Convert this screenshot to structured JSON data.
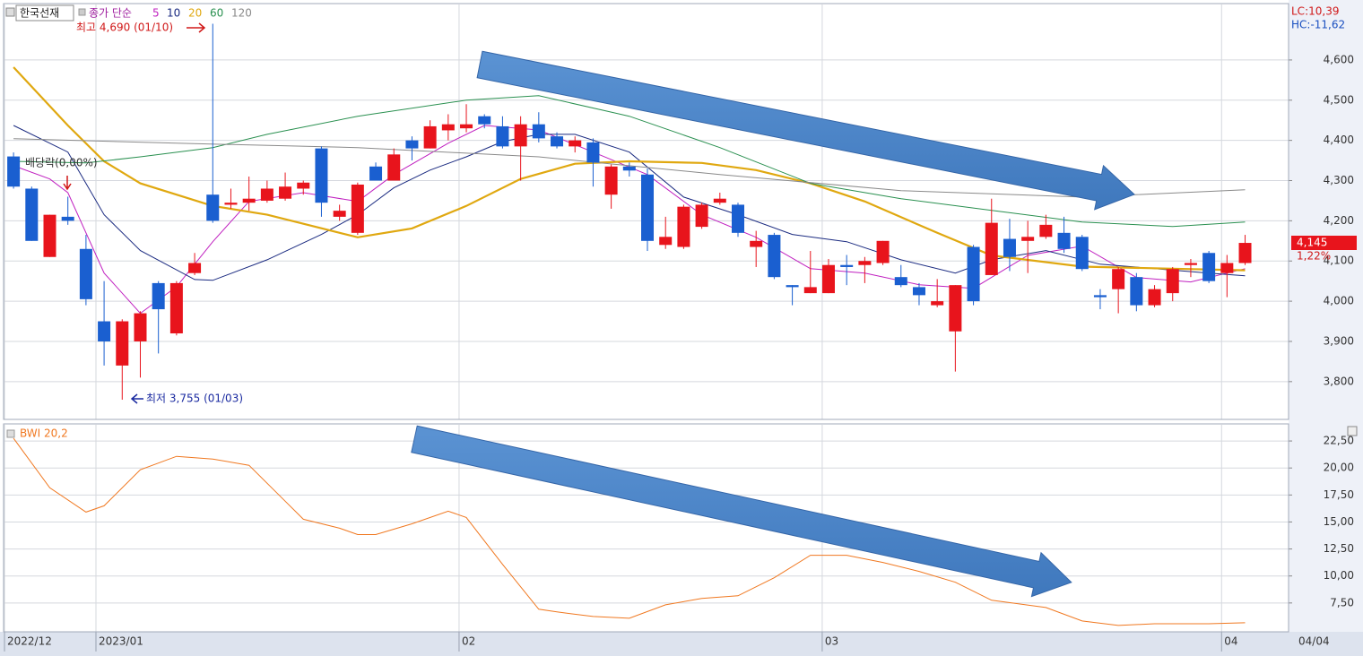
{
  "chart_data": [
    {
      "type": "candlestick",
      "title": "한국선재",
      "legend_title": "종가 단순",
      "up_color": "#e8141c",
      "down_color": "#1a5fd0",
      "open": [
        4360,
        4280,
        4110,
        4210,
        4130,
        3950,
        3840,
        3900,
        4045,
        3920,
        4070,
        4265,
        4240,
        4245,
        4250,
        4255,
        4280,
        4380,
        4210,
        4170,
        4335,
        4300,
        4400,
        4380,
        4425,
        4430,
        4460,
        4435,
        4385,
        4440,
        4410,
        4385,
        4395,
        4265,
        4335,
        4315,
        4140,
        4135,
        4185,
        4245,
        4240,
        4135,
        4165,
        4040,
        4020,
        4020,
        4090,
        4090,
        4095,
        4060,
        4035,
        3990,
        3925,
        4135,
        4065,
        4155,
        4150,
        4160,
        4170,
        4160,
        4015,
        4030,
        4060,
        3990,
        4020,
        4090,
        4120,
        4070,
        4095
      ],
      "high": [
        4370,
        4285,
        4215,
        4260,
        4165,
        4050,
        3955,
        3975,
        4050,
        4050,
        4120,
        4690,
        4280,
        4310,
        4300,
        4320,
        4300,
        4385,
        4240,
        4295,
        4345,
        4380,
        4410,
        4450,
        4465,
        4490,
        4465,
        4460,
        4460,
        4470,
        4420,
        4410,
        4405,
        4340,
        4345,
        4330,
        4210,
        4240,
        4245,
        4270,
        4245,
        4175,
        4170,
        4040,
        4125,
        4105,
        4115,
        4110,
        4150,
        4090,
        4045,
        4055,
        4040,
        4140,
        4255,
        4205,
        4200,
        4215,
        4210,
        4165,
        4030,
        4085,
        4070,
        4040,
        4085,
        4105,
        4125,
        4115,
        4165
      ],
      "low": [
        4280,
        4150,
        4110,
        4190,
        3990,
        3840,
        3755,
        3810,
        3870,
        3915,
        4065,
        4195,
        4230,
        4225,
        4245,
        4250,
        4265,
        4210,
        4200,
        4165,
        4300,
        4300,
        4350,
        4380,
        4400,
        4420,
        4430,
        4380,
        4300,
        4395,
        4380,
        4370,
        4285,
        4230,
        4310,
        4125,
        4130,
        4130,
        4180,
        4240,
        4160,
        4085,
        4055,
        3990,
        4020,
        4020,
        4040,
        4045,
        4090,
        4035,
        3990,
        3985,
        3825,
        3990,
        4065,
        4075,
        4070,
        4155,
        4120,
        4075,
        3980,
        3970,
        3975,
        3985,
        4000,
        4060,
        4045,
        4010,
        4090
      ],
      "close": [
        4285,
        4150,
        4215,
        4200,
        4005,
        3900,
        3950,
        3970,
        3980,
        4045,
        4095,
        4200,
        4245,
        4255,
        4280,
        4285,
        4295,
        4245,
        4225,
        4290,
        4300,
        4365,
        4380,
        4435,
        4440,
        4440,
        4440,
        4385,
        4440,
        4405,
        4385,
        4400,
        4345,
        4335,
        4325,
        4150,
        4160,
        4235,
        4240,
        4255,
        4170,
        4150,
        4060,
        4035,
        4035,
        4090,
        4085,
        4100,
        4150,
        4040,
        4015,
        4000,
        4040,
        4000,
        4195,
        4110,
        4160,
        4190,
        4130,
        4080,
        4010,
        4080,
        3990,
        4030,
        4080,
        4095,
        4050,
        4095,
        4145
      ],
      "series": [
        {
          "name": "5",
          "color": "#c020c0",
          "x": [
            0,
            2,
            3,
            5,
            7,
            9,
            11,
            13,
            16,
            19,
            21,
            24,
            26,
            29,
            32,
            35,
            38,
            41,
            44,
            47,
            50,
            53,
            56,
            59,
            62,
            65,
            68
          ],
          "values": [
            4337,
            4304,
            4270,
            4070,
            3970,
            4036,
            4148,
            4248,
            4270,
            4248,
            4315,
            4393,
            4437,
            4426,
            4371,
            4315,
            4215,
            4159,
            4081,
            4070,
            4041,
            4032,
            4114,
            4137,
            4059,
            4048,
            4081
          ]
        },
        {
          "name": "10",
          "color": "#1a2a80",
          "x": [
            0,
            3,
            5,
            7,
            10,
            11,
            14,
            17,
            19,
            21,
            23,
            25,
            27,
            29,
            31,
            34,
            37,
            40,
            43,
            46,
            49,
            52,
            54,
            57,
            60,
            63,
            66,
            68
          ],
          "values": [
            4437,
            4371,
            4215,
            4126,
            4054,
            4052,
            4103,
            4166,
            4215,
            4282,
            4326,
            4359,
            4397,
            4415,
            4415,
            4371,
            4259,
            4215,
            4166,
            4148,
            4103,
            4070,
            4103,
            4126,
            4092,
            4081,
            4070,
            4063
          ]
        },
        {
          "name": "20",
          "color": "#e0a810",
          "x": [
            0,
            3,
            5,
            7,
            11,
            14,
            19,
            22,
            25,
            28,
            31,
            34,
            38,
            41,
            44,
            47,
            51,
            54,
            59,
            64,
            68
          ],
          "values": [
            4582,
            4437,
            4348,
            4293,
            4237,
            4215,
            4159,
            4181,
            4237,
            4304,
            4342,
            4348,
            4344,
            4326,
            4293,
            4248,
            4170,
            4114,
            4086,
            4081,
            4077
          ]
        },
        {
          "name": "60",
          "color": "#2a9050",
          "x": [
            0,
            4,
            7,
            11,
            14,
            19,
            25,
            29,
            34,
            39,
            44,
            49,
            54,
            59,
            64,
            68
          ],
          "values": [
            4348,
            4344,
            4359,
            4382,
            4415,
            4460,
            4500,
            4511,
            4460,
            4382,
            4293,
            4255,
            4226,
            4197,
            4186,
            4197
          ]
        },
        {
          "name": "120",
          "color": "#8a8a8a",
          "x": [
            0,
            9,
            19,
            29,
            39,
            49,
            59,
            68
          ],
          "values": [
            4404,
            4393,
            4382,
            4359,
            4315,
            4275,
            4259,
            4277
          ]
        }
      ],
      "xlim": [
        -0.5,
        70.4
      ],
      "ylim": [
        3706,
        4738
      ],
      "yticks": [
        {
          "value": 3800,
          "label": "3,800"
        },
        {
          "value": 3900,
          "label": "3,900"
        },
        {
          "value": 4000,
          "label": "4,000"
        },
        {
          "value": 4100,
          "label": "4,100"
        },
        {
          "value": 4200,
          "label": "4,200"
        },
        {
          "value": 4300,
          "label": "4,300"
        },
        {
          "value": 4400,
          "label": "4,400"
        },
        {
          "value": 4500,
          "label": "4,500"
        },
        {
          "value": 4600,
          "label": "4,600"
        }
      ],
      "grid": true,
      "high_label": "최고 4,690 (01/10)",
      "low_label": "최저 3,755 (01/03)",
      "dividend_label": "배당락(0,00%)",
      "lc_label": "LC:10,39",
      "hc_label": "HC:-11,62",
      "last_label": "4,145",
      "change_label": "1,22%"
    },
    {
      "type": "line",
      "series": [
        {
          "name": "BWI 20,2",
          "color": "#f07820",
          "x": [
            0,
            2,
            4,
            5,
            7,
            9,
            11,
            13,
            15,
            16,
            18,
            19,
            20,
            22,
            24,
            25,
            27,
            29,
            30,
            32,
            34,
            36,
            38,
            40,
            42,
            44,
            46,
            48,
            50,
            52,
            54,
            57,
            59,
            61,
            63,
            66,
            68
          ],
          "values": [
            22.75,
            18.17,
            15.92,
            16.5,
            19.83,
            21.08,
            20.83,
            20.25,
            16.92,
            15.25,
            14.42,
            13.83,
            13.83,
            14.83,
            16.0,
            15.42,
            11.08,
            6.92,
            6.67,
            6.25,
            6.08,
            7.33,
            7.92,
            8.17,
            9.83,
            11.92,
            11.92,
            11.25,
            10.42,
            9.42,
            7.75,
            7.08,
            5.83,
            5.42,
            5.58,
            5.58,
            5.67
          ]
        }
      ],
      "xlim": [
        -0.5,
        70.4
      ],
      "ylim": [
        4.83,
        24
      ],
      "yticks": [
        {
          "value": 7.5,
          "label": "7,50"
        },
        {
          "value": 10,
          "label": "10,00"
        },
        {
          "value": 12.5,
          "label": "12,50"
        },
        {
          "value": 15,
          "label": "15,00"
        },
        {
          "value": 17.5,
          "label": "17,50"
        },
        {
          "value": 20,
          "label": "20,00"
        },
        {
          "value": 22.5,
          "label": "22,50"
        }
      ],
      "xticks": [
        {
          "value": -0.5,
          "label": "2022/12"
        },
        {
          "value": 4.55,
          "label": "2023/01"
        },
        {
          "value": 24.6,
          "label": "02"
        },
        {
          "value": 44.65,
          "label": "03"
        },
        {
          "value": 66.7,
          "label": "04"
        }
      ],
      "last_date": "04/04",
      "grid": true
    }
  ]
}
